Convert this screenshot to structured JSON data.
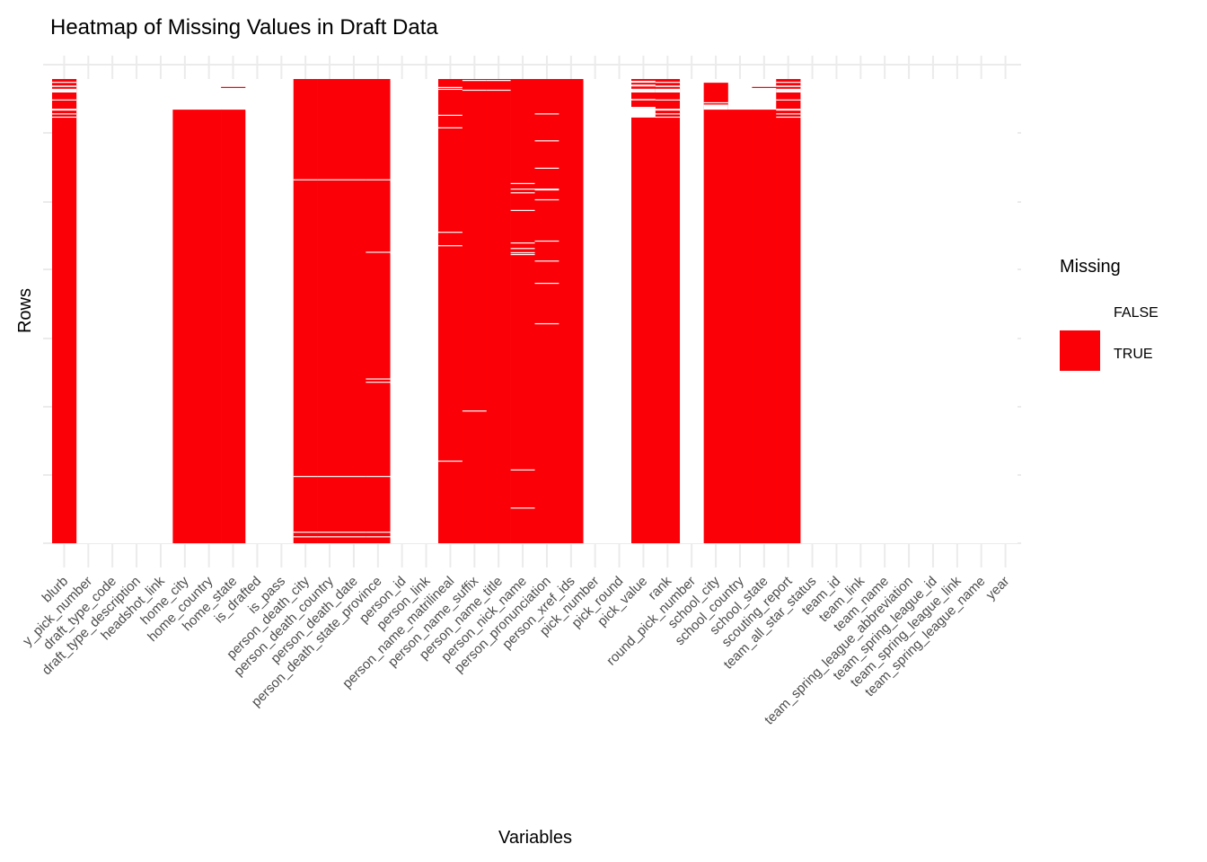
{
  "chart_data": {
    "type": "heatmap",
    "title": "Heatmap of Missing Values in Draft Data",
    "xlabel": "Variables",
    "ylabel": "Rows",
    "legend": {
      "title": "Missing",
      "placement": "right",
      "entries": [
        {
          "label": "FALSE",
          "color": "#ffffff"
        },
        {
          "label": "TRUE",
          "color": "#fc0007"
        }
      ]
    },
    "row_axis_note": "missing spans given as fractions of rows from top (0) to bottom (1)",
    "columns": [
      {
        "name": "blurb",
        "missing": [
          0,
          1
        ],
        "gaps": [
          [
            0.006,
            0.008
          ],
          [
            0.014,
            0.017
          ],
          [
            0.021,
            0.029
          ],
          [
            0.044,
            0.046
          ],
          [
            0.064,
            0.068
          ],
          [
            0.074,
            0.075
          ],
          [
            0.081,
            0.083
          ]
        ]
      },
      {
        "name": "y_pick_number"
      },
      {
        "name": "draft_type_code"
      },
      {
        "name": "draft_type_description"
      },
      {
        "name": "headshot_link"
      },
      {
        "name": "home_city",
        "missing": [
          0.066,
          1
        ]
      },
      {
        "name": "home_country",
        "missing": [
          0.066,
          1
        ]
      },
      {
        "name": "home_state",
        "missing": [
          0.066,
          1
        ],
        "extra": [
          [
            0.017,
            0.019
          ]
        ]
      },
      {
        "name": "is_drafted"
      },
      {
        "name": "is_pass"
      },
      {
        "name": "person_death_city",
        "missing": [
          0,
          1
        ],
        "gaps": [
          [
            0.216,
            0.218
          ],
          [
            0.855,
            0.857
          ],
          [
            0.975,
            0.977
          ],
          [
            0.985,
            0.987
          ]
        ]
      },
      {
        "name": "person_death_country",
        "missing": [
          0,
          1
        ],
        "gaps": [
          [
            0.216,
            0.218
          ],
          [
            0.855,
            0.857
          ],
          [
            0.975,
            0.977
          ],
          [
            0.985,
            0.987
          ]
        ]
      },
      {
        "name": "person_death_date",
        "missing": [
          0,
          1
        ],
        "gaps": [
          [
            0.216,
            0.218
          ],
          [
            0.855,
            0.857
          ],
          [
            0.975,
            0.977
          ],
          [
            0.985,
            0.987
          ]
        ]
      },
      {
        "name": "person_death_state_province",
        "missing": [
          0,
          1
        ],
        "gaps": [
          [
            0.216,
            0.218
          ],
          [
            0.372,
            0.374
          ],
          [
            0.645,
            0.647
          ],
          [
            0.652,
            0.654
          ],
          [
            0.855,
            0.857
          ],
          [
            0.975,
            0.977
          ],
          [
            0.985,
            0.987
          ]
        ]
      },
      {
        "name": "person_id"
      },
      {
        "name": "person_link"
      },
      {
        "name": "person_name_matrilineal",
        "missing": [
          0,
          1
        ],
        "gaps": [
          [
            0.017,
            0.019
          ],
          [
            0.021,
            0.023
          ],
          [
            0.077,
            0.079
          ],
          [
            0.104,
            0.106
          ],
          [
            0.329,
            0.331
          ],
          [
            0.358,
            0.36
          ],
          [
            0.822,
            0.824
          ]
        ]
      },
      {
        "name": "person_name_suffix",
        "missing": [
          0,
          1
        ],
        "gaps": [
          [
            0.002,
            0.004
          ],
          [
            0.023,
            0.025
          ],
          [
            0.714,
            0.716
          ]
        ]
      },
      {
        "name": "person_name_title",
        "missing": [
          0,
          1
        ],
        "gaps": [
          [
            0.002,
            0.004
          ],
          [
            0.023,
            0.025
          ]
        ]
      },
      {
        "name": "person_nick_name",
        "missing": [
          0,
          1
        ],
        "gaps": [
          [
            0.224,
            0.226
          ],
          [
            0.236,
            0.238
          ],
          [
            0.244,
            0.246
          ],
          [
            0.282,
            0.284
          ],
          [
            0.352,
            0.354
          ],
          [
            0.364,
            0.366
          ],
          [
            0.373,
            0.375
          ],
          [
            0.377,
            0.379
          ],
          [
            0.841,
            0.843
          ],
          [
            0.923,
            0.925
          ]
        ]
      },
      {
        "name": "person_pronunciation",
        "missing": [
          0,
          1
        ],
        "gaps": [
          [
            0.074,
            0.076
          ],
          [
            0.132,
            0.134
          ],
          [
            0.191,
            0.193
          ],
          [
            0.236,
            0.24
          ],
          [
            0.259,
            0.261
          ],
          [
            0.348,
            0.35
          ],
          [
            0.391,
            0.393
          ],
          [
            0.439,
            0.441
          ],
          [
            0.526,
            0.528
          ]
        ]
      },
      {
        "name": "person_xref_ids",
        "missing": [
          0,
          1
        ]
      },
      {
        "name": "pick_number"
      },
      {
        "name": "pick_round"
      },
      {
        "name": "pick_value",
        "missing": [
          0,
          1
        ],
        "gaps": [
          [
            0.004,
            0.008
          ],
          [
            0.012,
            0.016
          ],
          [
            0.021,
            0.029
          ],
          [
            0.043,
            0.046
          ],
          [
            0.06,
            0.083
          ]
        ]
      },
      {
        "name": "rank",
        "missing": [
          0,
          1
        ],
        "gaps": [
          [
            0.006,
            0.008
          ],
          [
            0.014,
            0.017
          ],
          [
            0.021,
            0.029
          ],
          [
            0.044,
            0.046
          ],
          [
            0.064,
            0.068
          ],
          [
            0.074,
            0.075
          ],
          [
            0.081,
            0.083
          ]
        ]
      },
      {
        "name": "round_pick_number"
      },
      {
        "name": "school_city",
        "missing": [
          0.008,
          1
        ],
        "gaps": [
          [
            0.05,
            0.052
          ],
          [
            0.055,
            0.066
          ]
        ]
      },
      {
        "name": "school_country",
        "missing": [
          0.066,
          1
        ]
      },
      {
        "name": "school_state",
        "missing": [
          0.066,
          1
        ],
        "extra": [
          [
            0.017,
            0.019
          ]
        ]
      },
      {
        "name": "scouting_report",
        "missing": [
          0,
          1
        ],
        "gaps": [
          [
            0.006,
            0.008
          ],
          [
            0.014,
            0.017
          ],
          [
            0.021,
            0.029
          ],
          [
            0.044,
            0.046
          ],
          [
            0.064,
            0.068
          ],
          [
            0.074,
            0.075
          ],
          [
            0.081,
            0.083
          ]
        ]
      },
      {
        "name": "team_all_star_status"
      },
      {
        "name": "team_id"
      },
      {
        "name": "team_link"
      },
      {
        "name": "team_name"
      },
      {
        "name": "team_spring_league_abbreviation"
      },
      {
        "name": "team_spring_league_id"
      },
      {
        "name": "team_spring_league_link"
      },
      {
        "name": "team_spring_league_name"
      },
      {
        "name": "year"
      }
    ],
    "grid": true
  }
}
